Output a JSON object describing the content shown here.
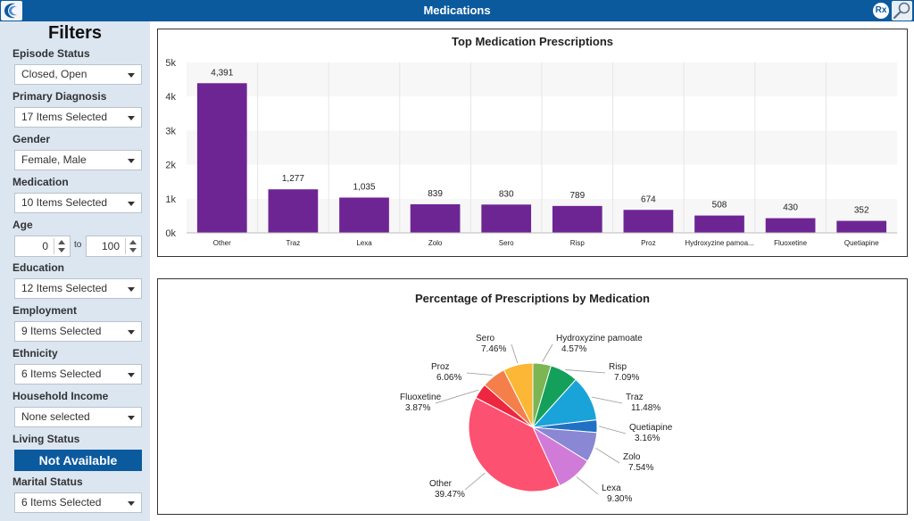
{
  "window": {
    "title": "Medications",
    "rx_badge": "Rx"
  },
  "filters": {
    "title": "Filters",
    "fields": [
      {
        "label": "Episode Status",
        "value": "Closed, Open"
      },
      {
        "label": "Primary Diagnosis",
        "value": "17 Items Selected"
      },
      {
        "label": "Gender",
        "value": "Female, Male"
      },
      {
        "label": "Medication",
        "value": "10 Items Selected"
      },
      {
        "label": "Age"
      },
      {
        "label": "Education",
        "value": "12 Items Selected"
      },
      {
        "label": "Employment",
        "value": "9 Items Selected"
      },
      {
        "label": "Ethnicity",
        "value": "6 Items Selected"
      },
      {
        "label": "Household Income",
        "value": "None selected"
      },
      {
        "label": "Living Status",
        "button": "Not Available"
      },
      {
        "label": "Marital Status",
        "value": "6 Items Selected"
      }
    ],
    "age": {
      "from": "0",
      "to_label": "to",
      "to": "100"
    }
  },
  "colors": {
    "titlebar": "#0c5a9e",
    "sidebar": "#dbe6f1",
    "bar": "#6e2594"
  },
  "chart_data": [
    {
      "type": "bar",
      "title": "Top Medication Prescriptions",
      "categories": [
        "Other",
        "Traz",
        "Lexa",
        "Zolo",
        "Sero",
        "Risp",
        "Proz",
        "Hydroxyzine pamoa...",
        "Fluoxetine",
        "Quetiapine"
      ],
      "values": [
        4391,
        1277,
        1035,
        839,
        830,
        789,
        674,
        508,
        430,
        352
      ],
      "value_labels": [
        "4,391",
        "1,277",
        "1,035",
        "839",
        "830",
        "789",
        "674",
        "508",
        "430",
        "352"
      ],
      "yticks": [
        "0k",
        "1k",
        "2k",
        "3k",
        "4k",
        "5k"
      ],
      "ylim": [
        0,
        5000
      ],
      "grid": true,
      "legend": "none"
    },
    {
      "type": "pie",
      "title": "Percentage of Prescriptions by Medication",
      "slices": [
        {
          "label": "Hydroxyzine pamoate",
          "pct": "4.57%",
          "value": 4.57,
          "color": "#7cb554"
        },
        {
          "label": "Risp",
          "pct": "7.09%",
          "value": 7.09,
          "color": "#14a05a"
        },
        {
          "label": "Traz",
          "pct": "11.48%",
          "value": 11.48,
          "color": "#1aa3d9"
        },
        {
          "label": "Quetiapine",
          "pct": "3.16%",
          "value": 3.16,
          "color": "#2170c3"
        },
        {
          "label": "Zolo",
          "pct": "7.54%",
          "value": 7.54,
          "color": "#8a87d4"
        },
        {
          "label": "Lexa",
          "pct": "9.30%",
          "value": 9.3,
          "color": "#d17bd8"
        },
        {
          "label": "Other",
          "pct": "39.47%",
          "value": 39.47,
          "color": "#fc5170"
        },
        {
          "label": "Fluoxetine",
          "pct": "3.87%",
          "value": 3.87,
          "color": "#ee2740"
        },
        {
          "label": "Proz",
          "pct": "6.06%",
          "value": 6.06,
          "color": "#f47f4a"
        },
        {
          "label": "Sero",
          "pct": "7.46%",
          "value": 7.46,
          "color": "#fbb735"
        }
      ]
    }
  ]
}
